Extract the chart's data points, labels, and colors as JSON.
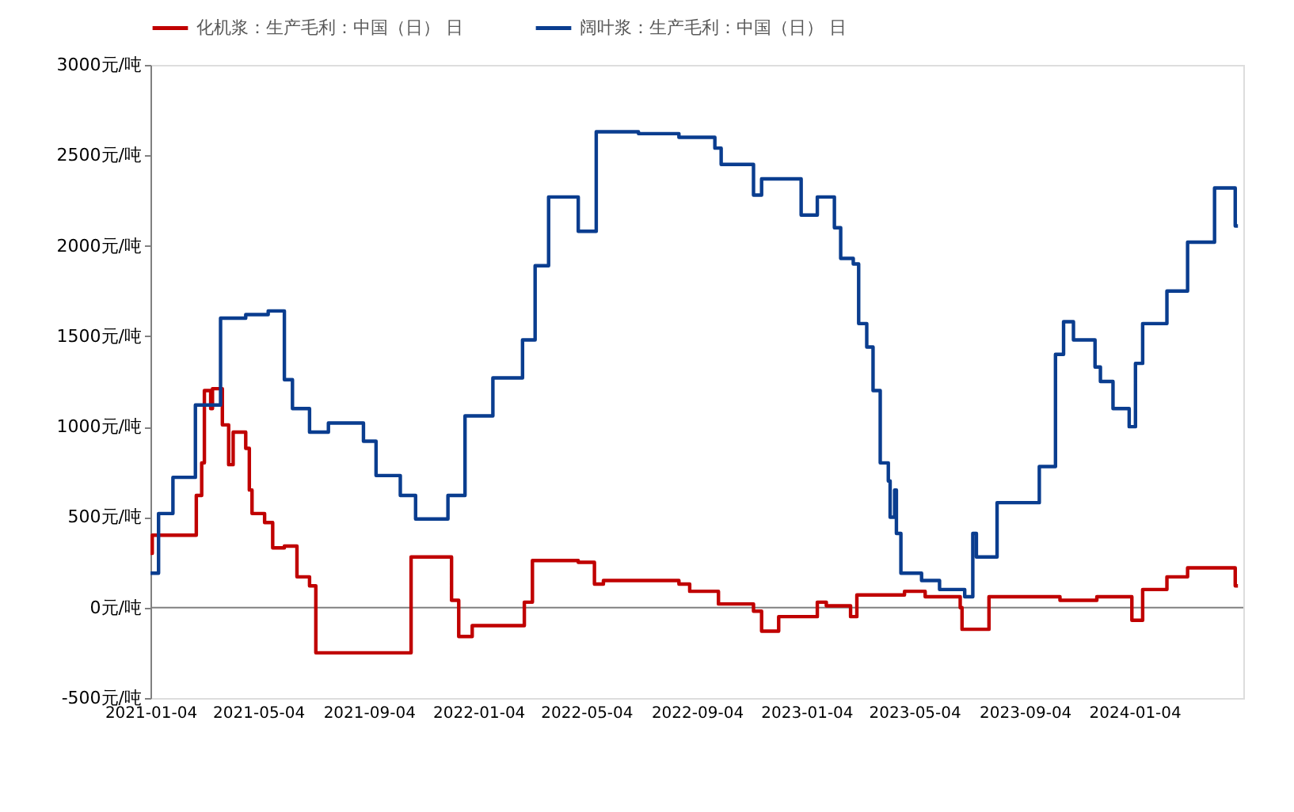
{
  "chart_data": {
    "type": "step",
    "legend": "top",
    "grid": false,
    "line_style": "solid",
    "marker": "none",
    "xlim": [
      "2021-01-04",
      "2024-05-04"
    ],
    "xticks": [
      {
        "value": "2021-01-04",
        "label": "2021-01-04"
      },
      {
        "value": "2021-05-04",
        "label": "2021-05-04"
      },
      {
        "value": "2021-09-04",
        "label": "2021-09-04"
      },
      {
        "value": "2022-01-04",
        "label": "2022-01-04"
      },
      {
        "value": "2022-05-04",
        "label": "2022-05-04"
      },
      {
        "value": "2022-09-04",
        "label": "2022-09-04"
      },
      {
        "value": "2023-01-04",
        "label": "2023-01-04"
      },
      {
        "value": "2023-05-04",
        "label": "2023-05-04"
      },
      {
        "value": "2023-09-04",
        "label": "2023-09-04"
      },
      {
        "value": "2024-01-04",
        "label": "2024-01-04"
      }
    ],
    "ylim": [
      -500,
      3000
    ],
    "yticks": [
      {
        "value": -500,
        "label": "-500元/吨"
      },
      {
        "value": 0,
        "label": "0元/吨"
      },
      {
        "value": 500,
        "label": "500元/吨"
      },
      {
        "value": 1000,
        "label": "1000元/吨"
      },
      {
        "value": 1500,
        "label": "1500元/吨"
      },
      {
        "value": 2000,
        "label": "2000元/吨"
      },
      {
        "value": 2500,
        "label": "2500元/吨"
      },
      {
        "value": 3000,
        "label": "3000元/吨"
      }
    ],
    "ref_lines": [
      {
        "axis": "y",
        "value": 0,
        "color": "#808080"
      }
    ],
    "series": [
      {
        "name": "化机浆：生产毛利：中国（日） 日",
        "color": "#c00000",
        "x": [
          "2021-01-04",
          "2021-01-06",
          "2021-02-24",
          "2021-03-02",
          "2021-03-05",
          "2021-03-12",
          "2021-03-14",
          "2021-03-25",
          "2021-04-01",
          "2021-04-06",
          "2021-04-20",
          "2021-04-24",
          "2021-04-27",
          "2021-05-11",
          "2021-05-20",
          "2021-06-02",
          "2021-06-16",
          "2021-06-30",
          "2021-07-07",
          "2021-10-21",
          "2021-12-05",
          "2021-12-13",
          "2021-12-28",
          "2022-02-24",
          "2022-03-05",
          "2022-04-25",
          "2022-05-13",
          "2022-05-23",
          "2022-08-15",
          "2022-08-27",
          "2022-09-28",
          "2022-11-06",
          "2022-11-15",
          "2022-12-04",
          "2023-01-16",
          "2023-01-26",
          "2023-02-22",
          "2023-03-01",
          "2023-04-23",
          "2023-05-16",
          "2023-06-24",
          "2023-06-26",
          "2023-07-26",
          "2023-10-13",
          "2023-11-23",
          "2024-01-01",
          "2024-01-13",
          "2024-02-09",
          "2024-03-03",
          "2024-04-25",
          "2024-04-28"
        ],
        "values": [
          300,
          400,
          620,
          800,
          1200,
          1100,
          1210,
          1010,
          790,
          970,
          880,
          650,
          520,
          470,
          330,
          340,
          170,
          120,
          -250,
          280,
          40,
          -160,
          -100,
          30,
          260,
          250,
          130,
          150,
          130,
          90,
          20,
          -20,
          -130,
          -50,
          30,
          10,
          -50,
          70,
          90,
          60,
          0,
          -120,
          60,
          40,
          60,
          -70,
          100,
          170,
          220,
          120,
          120
        ]
      },
      {
        "name": "阔叶浆：生产毛利：中国（日） 日",
        "color": "#0a3d8f",
        "x": [
          "2021-01-04",
          "2021-01-13",
          "2021-01-29",
          "2021-02-23",
          "2021-03-23",
          "2021-04-20",
          "2021-05-15",
          "2021-06-02",
          "2021-06-11",
          "2021-06-30",
          "2021-07-21",
          "2021-08-29",
          "2021-09-12",
          "2021-10-09",
          "2021-10-26",
          "2021-12-01",
          "2021-12-20",
          "2022-01-20",
          "2022-02-22",
          "2022-03-08",
          "2022-03-23",
          "2022-04-25",
          "2022-05-15",
          "2022-07-01",
          "2022-08-15",
          "2022-09-24",
          "2022-10-01",
          "2022-11-06",
          "2022-11-15",
          "2022-12-29",
          "2023-01-16",
          "2023-02-04",
          "2023-02-11",
          "2023-02-25",
          "2023-03-03",
          "2023-03-12",
          "2023-03-19",
          "2023-03-27",
          "2023-04-05",
          "2023-04-07",
          "2023-04-12",
          "2023-04-14",
          "2023-04-19",
          "2023-05-12",
          "2023-06-01",
          "2023-06-29",
          "2023-07-08",
          "2023-07-12",
          "2023-08-04",
          "2023-09-20",
          "2023-10-08",
          "2023-10-17",
          "2023-10-28",
          "2023-11-21",
          "2023-11-27",
          "2023-12-11",
          "2023-12-29",
          "2024-01-05",
          "2024-01-13",
          "2024-02-09",
          "2024-03-03",
          "2024-04-02",
          "2024-04-25",
          "2024-04-28"
        ],
        "values": [
          190,
          520,
          720,
          1120,
          1600,
          1620,
          1640,
          1260,
          1100,
          970,
          1020,
          920,
          730,
          620,
          490,
          620,
          1060,
          1270,
          1480,
          1890,
          2270,
          2080,
          2630,
          2620,
          2600,
          2540,
          2450,
          2280,
          2370,
          2170,
          2270,
          2100,
          1930,
          1900,
          1570,
          1440,
          1200,
          800,
          700,
          500,
          650,
          410,
          190,
          150,
          100,
          60,
          410,
          280,
          580,
          780,
          1400,
          1580,
          1480,
          1330,
          1250,
          1100,
          1000,
          1350,
          1570,
          1750,
          2020,
          2320,
          2110,
          2110
        ]
      }
    ]
  }
}
